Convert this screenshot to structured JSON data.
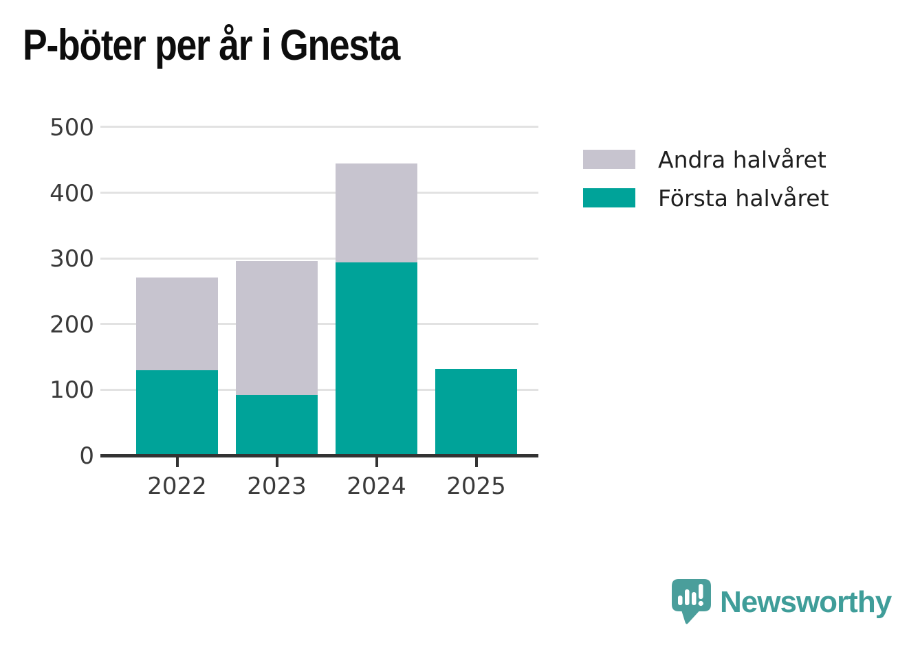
{
  "title": "P-böter per år i Gnesta",
  "chart_data": {
    "type": "bar",
    "stacked": true,
    "title": "P-böter per år i Gnesta",
    "xlabel": "",
    "ylabel": "",
    "categories": [
      "2022",
      "2023",
      "2024",
      "2025"
    ],
    "series": [
      {
        "name": "Första halvåret",
        "color": "#00a399",
        "values": [
          130,
          92,
          294,
          132
        ]
      },
      {
        "name": "Andra halvåret",
        "color": "#c7c4cf",
        "values": [
          141,
          204,
          150,
          0
        ]
      }
    ],
    "yticks": [
      0,
      100,
      200,
      300,
      400,
      500
    ],
    "ylim": [
      0,
      500
    ],
    "grid": true,
    "legend_position": "right-top"
  },
  "legend": {
    "items": [
      {
        "label": "Andra halvåret",
        "color": "#c7c4cf"
      },
      {
        "label": "Första halvåret",
        "color": "#00a399"
      }
    ]
  },
  "footer": {
    "brand": "Newsworthy",
    "logo_icon": "newsworthy-speech-bubble-bar-chart-icon"
  },
  "colors": {
    "first_half": "#00a399",
    "second_half": "#c7c4cf",
    "gridline": "#e2e2e2",
    "axis": "#333333",
    "tick_text": "#3a3a3a",
    "title_text": "#0d0d0d",
    "brand_teal": "#3f9d99",
    "logo_teal": "#4a9e9b",
    "background": "#ffffff"
  }
}
